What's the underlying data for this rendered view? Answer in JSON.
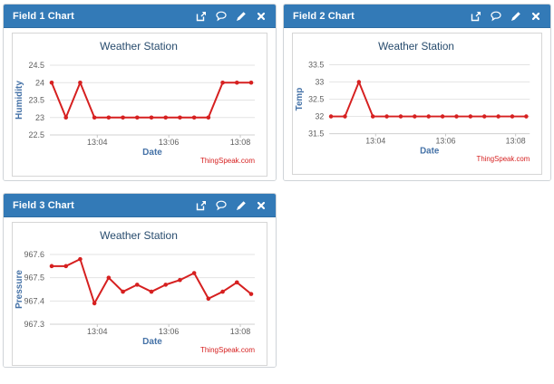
{
  "theme": {
    "header_bg": "#337ab7",
    "header_text": "#ffffff",
    "panel_border": "#cfd4d8",
    "chart_border": "#d6d6d6",
    "line_color": "#d62020",
    "title_color": "#274b6d",
    "axis_title_color": "#4572a7",
    "tick_label_color": "#606060",
    "grid_color": "#e3e3e3",
    "axis_line_color": "#d0d0d0",
    "credits_color": "#d62020"
  },
  "toolbar_icons": [
    "external-link-icon",
    "comment-icon",
    "edit-icon",
    "close-icon"
  ],
  "panels": [
    {
      "title": "Field 1 Chart"
    },
    {
      "title": "Field 2 Chart"
    },
    {
      "title": "Field 3 Chart"
    }
  ],
  "chart_data": [
    {
      "type": "line",
      "title": "Weather Station",
      "xlabel": "Date",
      "ylabel": "Humidity",
      "credits": "ThingSpeak.com",
      "x_ticks": [
        "13:04",
        "13:06",
        "13:08"
      ],
      "x_tick_indices": [
        3.2,
        8.22,
        13.24
      ],
      "y_ticks": [
        22.5,
        23,
        23.5,
        24,
        24.5
      ],
      "ylim": [
        22.5,
        24.5
      ],
      "values": [
        24,
        23,
        24,
        23,
        23,
        23,
        23,
        23,
        23,
        23,
        23,
        23,
        24,
        24,
        24
      ],
      "legend": "off",
      "grid": "horizontal"
    },
    {
      "type": "line",
      "title": "Weather Station",
      "xlabel": "Date",
      "ylabel": "Temp",
      "credits": "ThingSpeak.com",
      "x_ticks": [
        "13:04",
        "13:06",
        "13:08"
      ],
      "x_tick_indices": [
        3.2,
        8.22,
        13.24
      ],
      "y_ticks": [
        31.5,
        32,
        32.5,
        33,
        33.5
      ],
      "ylim": [
        31.5,
        33.5
      ],
      "values": [
        32,
        32,
        33,
        32,
        32,
        32,
        32,
        32,
        32,
        32,
        32,
        32,
        32,
        32,
        32
      ],
      "legend": "off",
      "grid": "horizontal"
    },
    {
      "type": "line",
      "title": "Weather Station",
      "xlabel": "Date",
      "ylabel": "Pressure",
      "credits": "ThingSpeak.com",
      "x_ticks": [
        "13:04",
        "13:06",
        "13:08"
      ],
      "x_tick_indices": [
        3.2,
        8.22,
        13.24
      ],
      "y_ticks": [
        967.3,
        967.4,
        967.5,
        967.6
      ],
      "ylim": [
        967.3,
        967.6
      ],
      "values": [
        967.55,
        967.55,
        967.58,
        967.39,
        967.5,
        967.44,
        967.47,
        967.44,
        967.47,
        967.49,
        967.52,
        967.41,
        967.44,
        967.48,
        967.43
      ],
      "legend": "off",
      "grid": "horizontal"
    }
  ]
}
